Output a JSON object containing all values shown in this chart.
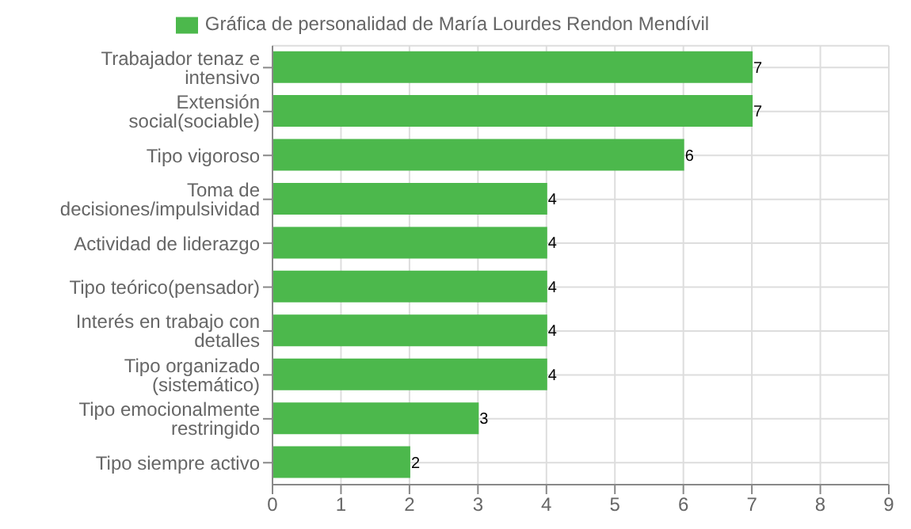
{
  "chart_data": {
    "type": "bar",
    "orientation": "horizontal",
    "categories": [
      "Trabajador tenaz e intensivo",
      "Extensión social(sociable)",
      "Tipo vigoroso",
      "Toma de decisiones/impulsividad",
      "Actividad de liderazgo",
      "Tipo teórico(pensador)",
      "Interés en trabajo con detalles",
      "Tipo organizado (sistemático)",
      "Tipo emocionalmente restringido",
      "Tipo siempre activo"
    ],
    "series": [
      {
        "name": "Gráfica de personalidad de María Lourdes Rendon Mendívil",
        "color": "#4cb84c",
        "values": [
          7,
          7,
          6,
          4,
          4,
          4,
          4,
          4,
          3,
          2
        ]
      }
    ],
    "xlim": [
      0,
      9
    ],
    "xticks": [
      0,
      1,
      2,
      3,
      4,
      5,
      6,
      7,
      8,
      9
    ],
    "grid": true,
    "legend": "top",
    "data_labels": true
  }
}
